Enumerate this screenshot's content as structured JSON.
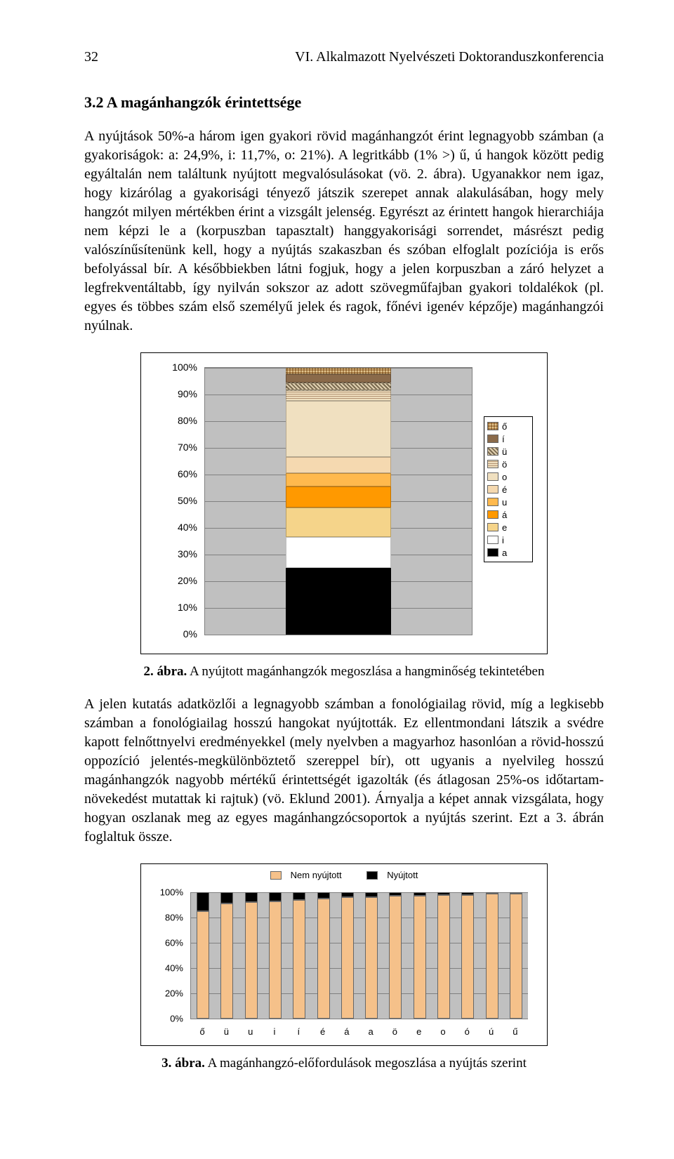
{
  "header": {
    "page": "32",
    "title": "VI. Alkalmazott Nyelvészeti Doktoranduszkonferencia"
  },
  "section_heading": "3.2 A magánhangzók érintettsége",
  "p1": "A nyújtások 50%-a három igen gyakori rövid magánhangzót érint legnagyobb számban (a gyakoriságok: a: 24,9%, i: 11,7%, o: 21%). A legritkább (1% >) ű, ú hangok között pedig egyáltalán nem találtunk nyújtott megvalósulásokat (vö. 2. ábra). Ugyanakkor nem igaz, hogy kizárólag a gyakorisági tényező játszik szerepet annak alakulásában, hogy mely hangzót milyen mértékben érint a vizsgált jelenség. Egyrészt az érintett hangok hierarchiája nem képzi le a (korpuszban tapasztalt) hanggyakorisági sorrendet, másrészt pedig valószínűsítenünk kell, hogy a nyújtás szakaszban és szóban elfoglalt pozíciója is erős befolyással bír. A későbbiekben látni fogjuk, hogy a jelen korpuszban a záró helyzet a legfrekventáltabb, így nyilván sokszor az adott szövegműfajban gyakori toldalékok (pl. egyes és többes szám első személyű jelek és ragok, főnévi igenév képzője) magánhangzói nyúlnak.",
  "chart1": {
    "type": "stacked-bar-100",
    "yticks": [
      0,
      10,
      20,
      30,
      40,
      50,
      60,
      70,
      80,
      90,
      100
    ],
    "series": [
      {
        "key": "a",
        "pct": 24.9,
        "css": "background:#000000"
      },
      {
        "key": "i",
        "pct": 11.7,
        "css": "background:#ffffff"
      },
      {
        "key": "e",
        "pct": 11.0,
        "css": "background:#f5d48a"
      },
      {
        "key": "á",
        "pct": 8.0,
        "css": "background:#ff9900"
      },
      {
        "key": "u",
        "pct": 5.0,
        "css": "background:#ffb94d"
      },
      {
        "key": "é",
        "pct": 6.0,
        "css": "background:#f5d9b0"
      },
      {
        "key": "o",
        "pct": 21.0,
        "css": "background:#f0e0c0"
      },
      {
        "key": "ö",
        "pct": 4.0,
        "css": "background:repeating-linear-gradient(0deg,#f0e0c0 0 2px,#b09070 2px 3px)"
      },
      {
        "key": "ü",
        "pct": 3.0,
        "css": "background:repeating-linear-gradient(45deg,#e0d0b0 0 2px,#7a6a50 2px 4px)"
      },
      {
        "key": "í",
        "pct": 3.0,
        "css": "background:#8a6a4a"
      },
      {
        "key": "ő",
        "pct": 2.4,
        "css": "background:repeating-linear-gradient(90deg,#c0a070 0 2px,#f0e0c0 2px 4px),repeating-linear-gradient(0deg,#c0a070 0 2px,#f0e0c0 2px 4px);background-blend-mode:multiply"
      }
    ],
    "legend_order": [
      "ő",
      "í",
      "ü",
      "ö",
      "o",
      "é",
      "u",
      "á",
      "e",
      "i",
      "a"
    ]
  },
  "caption1_bold": "2. ábra.",
  "caption1_rest": " A nyújtott magánhangzók megoszlása a hangminőség tekintetében",
  "p2": "A jelen kutatás adatközlői a legnagyobb számban a fonológiailag rövid, míg a legkisebb számban a fonológiailag hosszú hangokat nyújtották. Ez ellentmondani látszik a svédre kapott felnőttnyelvi eredményekkel (mely nyelvben a magyarhoz hasonlóan a rövid-hosszú oppozíció jelentés-megkülönböztető szereppel bír), ott ugyanis a nyelvileg hosszú magánhangzók nagyobb mértékű érintettségét igazolták (és átlagosan 25%-os időtartam-növekedést mutattak ki rajtuk) (vö. Eklund 2001). Árnyalja a képet annak vizsgálata, hogy hogyan oszlanak meg az egyes magánhangzócsoportok a nyújtás szerint. Ezt a 3. ábrán foglaltuk össze.",
  "chart2": {
    "type": "stacked-bar-100-multi",
    "legend": [
      {
        "label": "Nem nyújtott",
        "color": "#f5c18a"
      },
      {
        "label": "Nyújtott",
        "color": "#000000"
      }
    ],
    "yticks": [
      0,
      20,
      40,
      60,
      80,
      100
    ],
    "categories": [
      "ő",
      "ü",
      "u",
      "i",
      "í",
      "é",
      "á",
      "a",
      "ö",
      "e",
      "o",
      "ó",
      "ú",
      "ű"
    ],
    "not_elongated": [
      85,
      91,
      92,
      93,
      94,
      95,
      96,
      96,
      97,
      97,
      98,
      98,
      99,
      99
    ]
  },
  "caption2_bold": "3. ábra.",
  "caption2_rest": " A magánhangzó-előfordulások megoszlása a nyújtás szerint"
}
